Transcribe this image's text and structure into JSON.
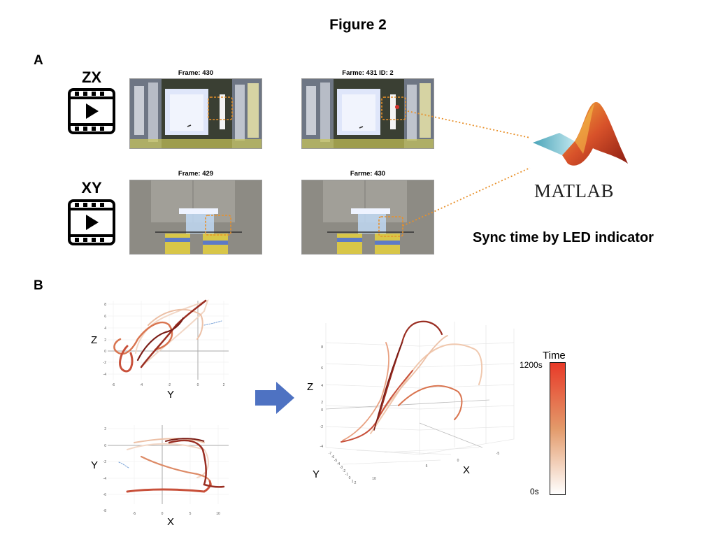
{
  "figure": {
    "title": "Figure 2"
  },
  "panel_a": {
    "letter": "A",
    "rows": [
      {
        "view": "ZX",
        "video_icon": "film-icon",
        "frames": [
          "Frame: 430",
          "Farme: 431 ID: 2"
        ]
      },
      {
        "view": "XY",
        "video_icon": "film-icon",
        "frames": [
          "Frame: 429",
          "Farme: 430"
        ]
      }
    ],
    "software": {
      "logo": "MATLAB",
      "icon": "matlab-membrane-icon"
    },
    "caption": "Sync time by LED indicator",
    "highlight_color": "#e8902a"
  },
  "panel_b": {
    "letter": "B",
    "zy_plot": {
      "ylabel": "Z",
      "xlabel": "Y",
      "yticks": [
        "8",
        "6",
        "4",
        "2",
        "0",
        "-2",
        "-4"
      ],
      "xticks": [
        "-6",
        "-4",
        "-2",
        "0",
        "2"
      ]
    },
    "xy_plot": {
      "ylabel": "Y",
      "xlabel": "X",
      "yticks": [
        "2",
        "0",
        "-2",
        "-4",
        "-6",
        "-8"
      ],
      "xticks": [
        "-5",
        "0",
        "5",
        "10"
      ]
    },
    "plot_3d": {
      "zlabel": "Z",
      "xlabel": "X",
      "ylabel": "Y",
      "zticks": [
        "8",
        "6",
        "4",
        "2",
        "0",
        "-2",
        "-4"
      ],
      "xticks": [
        "10",
        "5",
        "0",
        "-5"
      ],
      "yticks": [
        "-7",
        "-6",
        "-5",
        "-4",
        "-3",
        "-2",
        "-1",
        "0",
        "1",
        "2"
      ]
    },
    "arrow_icon": "right-arrow-icon",
    "colorbar": {
      "title": "Time",
      "max_label": "1200s",
      "min_label": "0s",
      "color_low": "#ffffff",
      "color_mid": "#e39a6a",
      "color_high": "#e83a28"
    }
  }
}
